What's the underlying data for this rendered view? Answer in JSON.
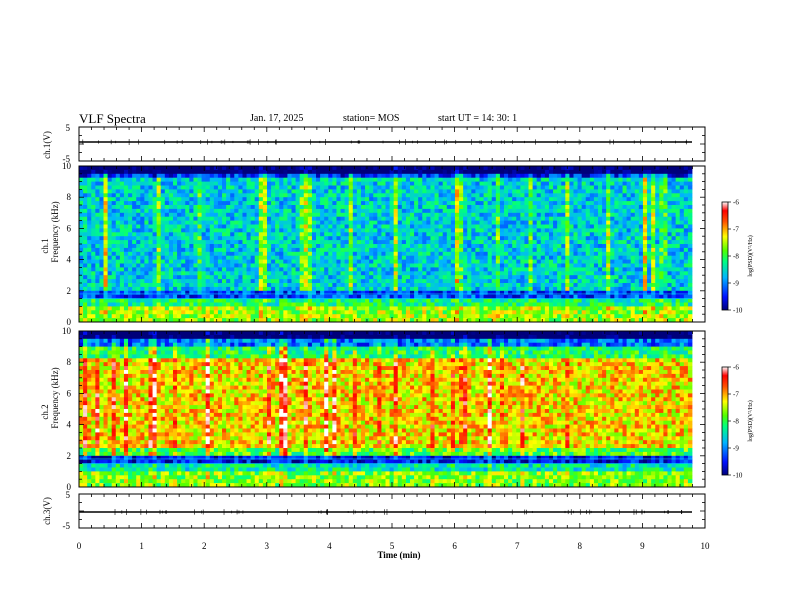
{
  "header": {
    "title": "VLF Spectra",
    "date": "Jan. 17, 2025",
    "station": "station= MOS",
    "start": "start  UT =   14: 30: 1"
  },
  "chart_data": [
    {
      "type": "line",
      "panel": "ch1-voltage",
      "ylabel": "ch.1(V)",
      "ylim": [
        -5,
        5
      ],
      "yticks": [
        "5",
        "-5"
      ],
      "x": [
        0,
        10
      ],
      "values": [
        -1.5,
        -1.5
      ]
    },
    {
      "type": "heatmap",
      "panel": "ch1-spectrogram",
      "ylabel": [
        "ch.1",
        "Frequency (kHz)"
      ],
      "ylim": [
        0,
        10
      ],
      "yticks": [
        "0",
        "2",
        "4",
        "6",
        "8",
        "10"
      ],
      "xlim": [
        0,
        9.85
      ],
      "colorbar": {
        "label": "log(PSD)(V²/Hz)",
        "range": [
          -10,
          -6
        ],
        "ticks": [
          "-6",
          "-7",
          "-8",
          "-9",
          "-10"
        ]
      }
    },
    {
      "type": "heatmap",
      "panel": "ch2-spectrogram",
      "ylabel": [
        "ch.2",
        "Frequency (kHz)"
      ],
      "ylim": [
        0,
        10
      ],
      "yticks": [
        "0",
        "2",
        "4",
        "6",
        "8",
        "10"
      ],
      "xlim": [
        0,
        9.85
      ],
      "colorbar": {
        "label": "log(PSD)(V²/Hz)",
        "range": [
          -10,
          -6
        ],
        "ticks": [
          "-6",
          "-7",
          "-8",
          "-9",
          "-10"
        ]
      }
    },
    {
      "type": "line",
      "panel": "ch3-voltage",
      "ylabel": "ch.3(V)",
      "ylim": [
        -5,
        5
      ],
      "yticks": [
        "5",
        "-5"
      ],
      "x": [
        0,
        10
      ],
      "values": [
        -1.5,
        -1.5
      ]
    }
  ],
  "xaxis": {
    "label": "Time (min)",
    "range": [
      0,
      10
    ],
    "ticks": [
      "0",
      "1",
      "2",
      "3",
      "4",
      "5",
      "6",
      "7",
      "8",
      "9",
      "10"
    ]
  }
}
